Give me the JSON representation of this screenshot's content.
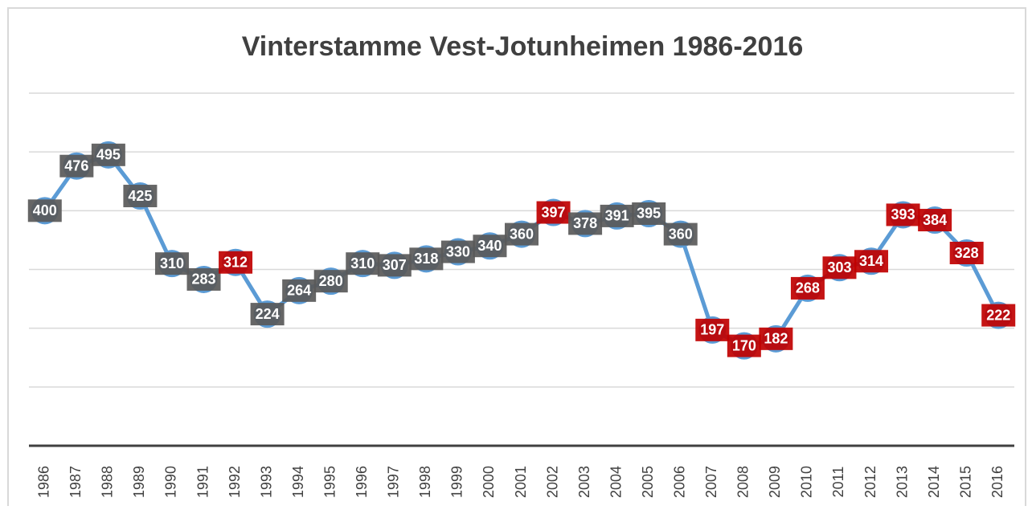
{
  "chart_data": {
    "type": "line",
    "title": "Vinterstamme Vest-Jotunheimen 1986-2016",
    "categories": [
      "1986",
      "1987",
      "1988",
      "1989",
      "1990",
      "1991",
      "1992",
      "1993",
      "1994",
      "1995",
      "1996",
      "1997",
      "1998",
      "1999",
      "2000",
      "2001",
      "2002",
      "2003",
      "2004",
      "2005",
      "2006",
      "2007",
      "2008",
      "2009",
      "2010",
      "2011",
      "2012",
      "2013",
      "2014",
      "2015",
      "2016"
    ],
    "series": [
      {
        "name": "Vinterstamme",
        "color": "#5b9bd5",
        "values": [
          400,
          476,
          495,
          425,
          310,
          283,
          312,
          224,
          264,
          280,
          310,
          307,
          318,
          330,
          340,
          360,
          397,
          378,
          391,
          395,
          360,
          197,
          170,
          182,
          268,
          303,
          314,
          393,
          384,
          328,
          222
        ],
        "label_colors": [
          "#595959",
          "#595959",
          "#595959",
          "#595959",
          "#595959",
          "#595959",
          "#c00000",
          "#595959",
          "#595959",
          "#595959",
          "#595959",
          "#595959",
          "#595959",
          "#595959",
          "#595959",
          "#595959",
          "#c00000",
          "#595959",
          "#595959",
          "#595959",
          "#595959",
          "#c00000",
          "#c00000",
          "#c00000",
          "#c00000",
          "#c00000",
          "#c00000",
          "#c00000",
          "#c00000",
          "#c00000",
          "#c00000"
        ]
      }
    ],
    "ylim": [
      0,
      600
    ],
    "yticks": [
      0,
      100,
      200,
      300,
      400,
      500,
      600
    ],
    "grid": true,
    "ytick_labels": false,
    "legend": false
  }
}
